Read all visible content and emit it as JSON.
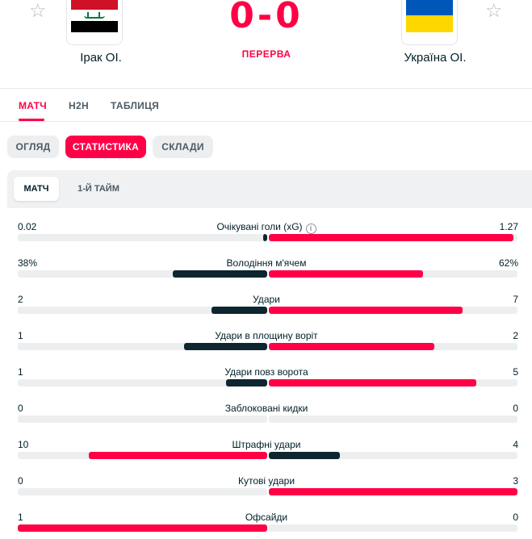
{
  "match": {
    "home": {
      "name": "Ірак ОІ.",
      "flag": "iraq-flag"
    },
    "away": {
      "name": "Україна ОІ.",
      "flag": "ukraine-flag"
    },
    "score": "0-0",
    "status": "ПЕРЕРВА"
  },
  "nav_tabs": [
    "МАТЧ",
    "H2H",
    "ТАБЛИЦЯ"
  ],
  "sub_tabs": [
    "ОГЛЯД",
    "СТАТИСТИКА",
    "СКЛАДИ"
  ],
  "period_tabs": [
    "МАТЧ",
    "1-Й ТАЙМ"
  ],
  "colors": {
    "accent": "#ff0046",
    "dark": "#0d2630",
    "track": "#eceef0"
  },
  "stats": [
    {
      "label": "Очікувані голи (xG)",
      "home": "0.02",
      "away": "1.27",
      "home_val": 0.02,
      "away_val": 1.27,
      "info": true
    },
    {
      "label": "Володіння м'ячем",
      "home": "38%",
      "away": "62%",
      "home_val": 38,
      "away_val": 62
    },
    {
      "label": "Удари",
      "home": "2",
      "away": "7",
      "home_val": 2,
      "away_val": 7
    },
    {
      "label": "Удари в площину воріт",
      "home": "1",
      "away": "2",
      "home_val": 1,
      "away_val": 2
    },
    {
      "label": "Удари повз ворота",
      "home": "1",
      "away": "5",
      "home_val": 1,
      "away_val": 5
    },
    {
      "label": "Заблоковані кидки",
      "home": "0",
      "away": "0",
      "home_val": 0,
      "away_val": 0
    },
    {
      "label": "Штрафні удари",
      "home": "10",
      "away": "4",
      "home_val": 10,
      "away_val": 4
    },
    {
      "label": "Кутові удари",
      "home": "0",
      "away": "3",
      "home_val": 0,
      "away_val": 3
    },
    {
      "label": "Офсайди",
      "home": "1",
      "away": "0",
      "home_val": 1,
      "away_val": 0
    }
  ]
}
